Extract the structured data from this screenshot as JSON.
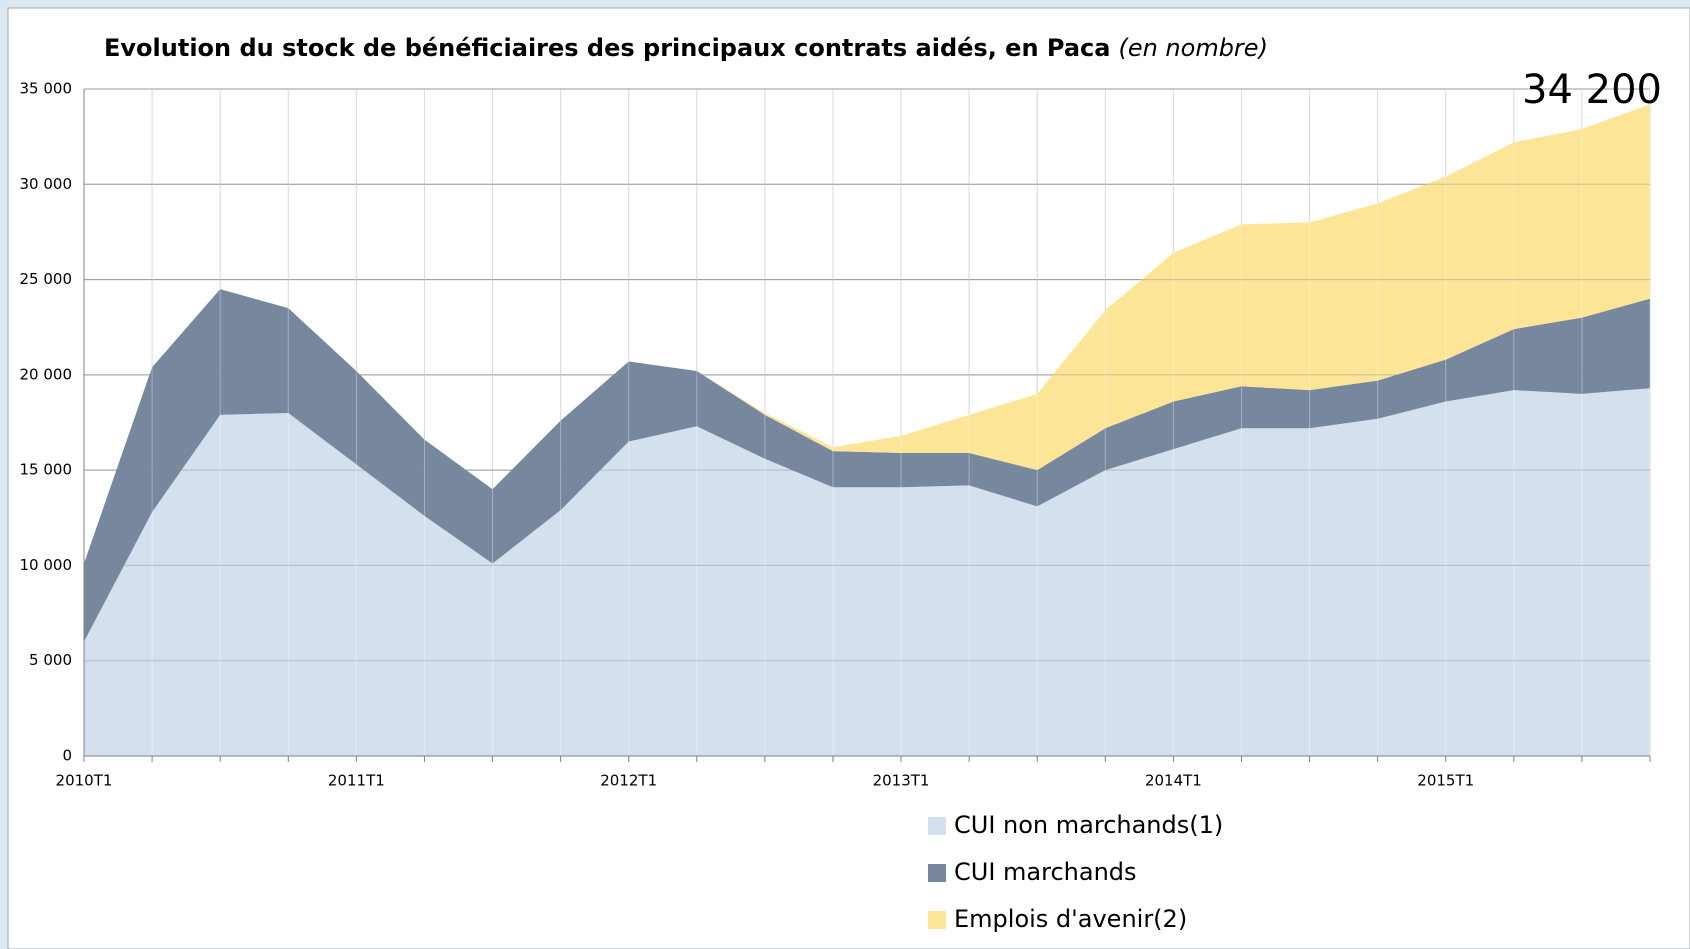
{
  "chart_data": {
    "type": "stacked_area",
    "title": "Evolution du stock de bénéficiaires des principaux contrats aidés, en Paca",
    "subtitle": "(en nombre)",
    "categories": [
      "2010T1",
      null,
      null,
      null,
      "2011T1",
      null,
      null,
      null,
      "2012T1",
      null,
      null,
      null,
      "2013T1",
      null,
      null,
      null,
      "2014T1",
      null,
      null,
      null,
      "2015T1",
      null,
      null,
      null
    ],
    "series": [
      {
        "name": "CUI non marchands(1)",
        "color": "#d5e0ee",
        "values": [
          6000,
          12800,
          17900,
          18000,
          15300,
          12600,
          10100,
          12900,
          16500,
          17300,
          15600,
          14100,
          14100,
          14200,
          13100,
          15000,
          16100,
          17200,
          17200,
          17700,
          18600,
          19200,
          19000,
          19300
        ]
      },
      {
        "name": "CUI marchands",
        "color": "#76879e",
        "values": [
          4100,
          7600,
          6600,
          5500,
          4900,
          4000,
          3900,
          4700,
          4200,
          2900,
          2300,
          1900,
          1800,
          1700,
          1900,
          2200,
          2500,
          2200,
          2000,
          2000,
          2200,
          3200,
          4000,
          4700
        ]
      },
      {
        "name": "Emplois d'avenir(2)",
        "color": "#fde597",
        "values": [
          0,
          0,
          0,
          0,
          0,
          0,
          0,
          0,
          0,
          0,
          100,
          200,
          900,
          2000,
          4000,
          6200,
          7800,
          8500,
          8800,
          9300,
          9600,
          9800,
          9900,
          10200
        ]
      }
    ],
    "ylim": [
      0,
      35000
    ],
    "yticks": [
      0,
      {
        "value": 5000,
        "label": "5 000"
      },
      {
        "value": 10000,
        "label": "10 000"
      },
      {
        "value": 15000,
        "label": "15 000"
      },
      {
        "value": 20000,
        "label": "20 000"
      },
      {
        "value": 25000,
        "label": "25 000"
      },
      {
        "value": 30000,
        "label": "30 000"
      },
      {
        "value": 35000,
        "label": "35 000"
      }
    ],
    "grid": true,
    "annotation": "34 200"
  }
}
